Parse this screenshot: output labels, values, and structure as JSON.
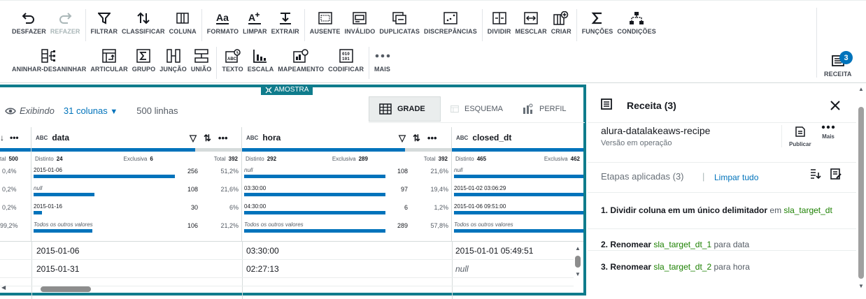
{
  "toolbar": {
    "row1": [
      {
        "name": "undo-button",
        "icon": "undo-icon",
        "label": "DESFAZER",
        "disabled": false
      },
      {
        "name": "redo-button",
        "icon": "redo-icon",
        "label": "REFAZER",
        "disabled": true
      },
      {
        "name": "filter-button",
        "icon": "filter-icon",
        "label": "FILTRAR",
        "disabled": false
      },
      {
        "name": "sort-button",
        "icon": "sort-icon",
        "label": "CLASSIFICAR",
        "disabled": false
      },
      {
        "name": "column-button",
        "icon": "column-icon",
        "label": "COLUNA",
        "disabled": false
      },
      {
        "name": "format-button",
        "icon": "format-icon",
        "label": "FORMATO",
        "disabled": false
      },
      {
        "name": "clean-button",
        "icon": "clean-icon",
        "label": "LIMPAR",
        "disabled": false
      },
      {
        "name": "extract-button",
        "icon": "extract-icon",
        "label": "EXTRAIR",
        "disabled": false
      },
      {
        "name": "missing-button",
        "icon": "missing-icon",
        "label": "AUSENTE",
        "disabled": false
      },
      {
        "name": "invalid-button",
        "icon": "invalid-icon",
        "label": "INVÁLIDO",
        "disabled": false
      },
      {
        "name": "duplicates-button",
        "icon": "duplicates-icon",
        "label": "DUPLICATAS",
        "disabled": false
      },
      {
        "name": "outliers-button",
        "icon": "outliers-icon",
        "label": "DISCREPÂNCIAS",
        "disabled": false
      },
      {
        "name": "split-button",
        "icon": "split-icon",
        "label": "DIVIDIR",
        "disabled": false
      },
      {
        "name": "merge-button",
        "icon": "merge-icon",
        "label": "MESCLAR",
        "disabled": false
      },
      {
        "name": "create-button",
        "icon": "create-icon",
        "label": "CRIAR",
        "disabled": false
      },
      {
        "name": "functions-button",
        "icon": "sigma-icon",
        "label": "FUNÇÕES",
        "disabled": false
      },
      {
        "name": "conditions-button",
        "icon": "conditions-icon",
        "label": "CONDIÇÕES",
        "disabled": false
      }
    ],
    "row2": [
      {
        "name": "nest-unnest-button",
        "icon": "nest-icon",
        "label": "ANINHAR-DESANINHAR"
      },
      {
        "name": "pivot-button",
        "icon": "pivot-icon",
        "label": "ARTICULAR"
      },
      {
        "name": "group-button",
        "icon": "group-icon",
        "label": "GRUPO"
      },
      {
        "name": "join-button",
        "icon": "join-icon",
        "label": "JUNÇÃO"
      },
      {
        "name": "union-button",
        "icon": "union-icon",
        "label": "UNIÃO"
      },
      {
        "name": "text-button",
        "icon": "text-icon",
        "label": "TEXTO"
      },
      {
        "name": "scale-button",
        "icon": "scale-icon",
        "label": "ESCALA"
      },
      {
        "name": "mapping-button",
        "icon": "mapping-icon",
        "label": "MAPEAMENTO"
      },
      {
        "name": "encode-button",
        "icon": "encode-icon",
        "label": "CODIFICAR"
      },
      {
        "name": "more-button",
        "icon": "more-icon",
        "label": "MAIS"
      }
    ],
    "recipe": {
      "label": "RECEITA",
      "badge": "3"
    }
  },
  "grid": {
    "sample_tag": "AMOSTRA",
    "showing_label": "Exibindo",
    "columns_count": "31 colunas",
    "rows_count": "500 linhas",
    "tabs": [
      "GRADE",
      "ESQUEMA",
      "PERFIL"
    ],
    "columns": [
      {
        "name": "",
        "type": "",
        "stats": {
          "total_label": "tal",
          "total": "500"
        },
        "values": [
          {
            "label": "",
            "count": "",
            "pct": "0,4%"
          },
          {
            "label": "",
            "count": "",
            "pct": "0,2%"
          },
          {
            "label": "",
            "count": "",
            "pct": "0,2%"
          },
          {
            "label": "",
            "count": "",
            "pct": "99,2%"
          }
        ]
      },
      {
        "name": "data",
        "type": "ABC",
        "stats": {
          "distinct_label": "Distinto",
          "distinct": "24",
          "unique_label": "Exclusiva",
          "unique": "6",
          "total_label": "Total",
          "total": "392"
        },
        "valid_fraction": 0.78,
        "values": [
          {
            "label": "2015-01-06",
            "count": "256",
            "pct": "51,2%",
            "frac": 0.98,
            "italic": false
          },
          {
            "label": "null",
            "count": "108",
            "pct": "21,6%",
            "frac": 0.42,
            "italic": true
          },
          {
            "label": "2015-01-16",
            "count": "30",
            "pct": "6%",
            "frac": 0.06,
            "italic": false
          },
          {
            "label": "Todos os outros valores",
            "count": "106",
            "pct": "21,2%",
            "frac": 0.41,
            "italic": true
          }
        ]
      },
      {
        "name": "hora",
        "type": "ABC",
        "stats": {
          "distinct_label": "Distinto",
          "distinct": "292",
          "unique_label": "Exclusiva",
          "unique": "289",
          "total_label": "Total",
          "total": "392"
        },
        "valid_fraction": 0.78,
        "values": [
          {
            "label": "null",
            "count": "108",
            "pct": "21,6%",
            "frac": 0.98,
            "italic": true
          },
          {
            "label": "03:30:00",
            "count": "97",
            "pct": "19,4%",
            "frac": 0.98,
            "italic": false
          },
          {
            "label": "04:30:00",
            "count": "6",
            "pct": "1,2%",
            "frac": 0.98,
            "italic": false
          },
          {
            "label": "Todos os outros valores",
            "count": "289",
            "pct": "57,8%",
            "frac": 0.98,
            "italic": true
          }
        ]
      },
      {
        "name": "closed_dt",
        "type": "ABC",
        "stats": {
          "distinct_label": "Distinto",
          "distinct": "465",
          "unique_label": "Exclusiva",
          "unique": "462"
        },
        "valid_fraction": 1.0,
        "values": [
          {
            "label": "null",
            "italic": true
          },
          {
            "label": "2015-01-02 03:06:29",
            "italic": false
          },
          {
            "label": "2015-01-06 09:51:00",
            "italic": false
          },
          {
            "label": "Todos os outros valores",
            "italic": true
          }
        ]
      }
    ],
    "rows": [
      {
        "data": "2015-01-06",
        "hora": "03:30:00",
        "closed_dt": "2015-01-01 05:49:51",
        "closed_null": false
      },
      {
        "data": "2015-01-31",
        "hora": "02:27:13",
        "closed_dt": "null",
        "closed_null": true
      }
    ]
  },
  "recipe": {
    "title": "Receita (3)",
    "name": "alura-datalakeaws-recipe",
    "version": "Versão em operação",
    "publish": "Publicar",
    "more": "Mais",
    "steps_label": "Etapas aplicadas (3)",
    "separator": "|",
    "clear_all": "Limpar tudo",
    "steps": [
      {
        "num": "1.",
        "action": "Dividir coluna em um único delimitador",
        "mid": "em",
        "target": "sla_target_dt",
        "to": "",
        "dest": ""
      },
      {
        "num": "2.",
        "action": "Renomear",
        "target": "sla_target_dt_1",
        "mid": "para",
        "dest": "data"
      },
      {
        "num": "3.",
        "action": "Renomear",
        "target": "sla_target_dt_2",
        "mid": "para",
        "dest": "hora"
      }
    ]
  },
  "colors": {
    "accent": "#0073bb",
    "frame": "#0f7c8c",
    "green": "#1d8102"
  }
}
